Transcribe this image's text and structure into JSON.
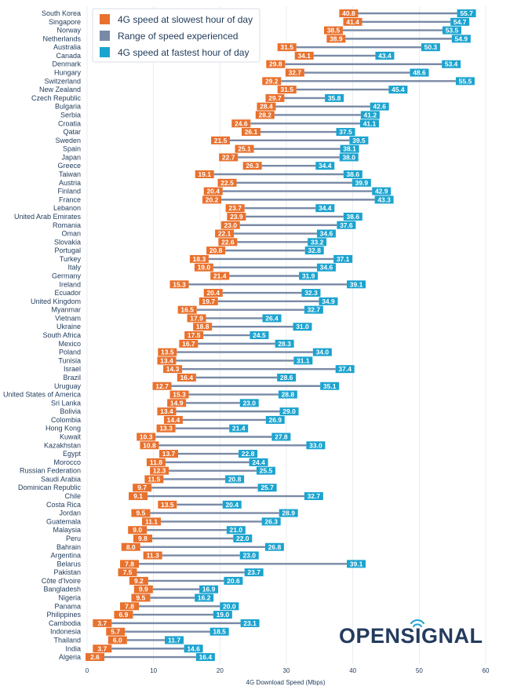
{
  "chart_data": {
    "type": "range",
    "title": "",
    "xlabel": "4G Download Speed (Mbps)",
    "ylabel": "",
    "xlim": [
      0,
      60
    ],
    "xticks": [
      0,
      10,
      20,
      30,
      40,
      50,
      60
    ],
    "legend_position": "top-left",
    "legend": {
      "min": "4G speed at slowest hour of day",
      "range": "Range of speed experienced",
      "max": "4G speed at fastest hour of day"
    },
    "colors": {
      "min": "#e8712d",
      "max": "#1ba3cf",
      "range": "#7a8aa6"
    },
    "logo": "OPENSIGNAL",
    "countries": [
      {
        "name": "South Korea",
        "min": 40.8,
        "max": 55.7
      },
      {
        "name": "Singapore",
        "min": 41.4,
        "max": 54.7
      },
      {
        "name": "Norway",
        "min": 38.5,
        "max": 53.5
      },
      {
        "name": "Netherlands",
        "min": 38.9,
        "max": 54.9
      },
      {
        "name": "Australia",
        "min": 31.5,
        "max": 50.3
      },
      {
        "name": "Canada",
        "min": 34.1,
        "max": 43.4
      },
      {
        "name": "Denmark",
        "min": 29.8,
        "max": 53.4
      },
      {
        "name": "Hungary",
        "min": 32.7,
        "max": 48.6
      },
      {
        "name": "Switzerland",
        "min": 29.2,
        "max": 55.5
      },
      {
        "name": "New Zealand",
        "min": 31.5,
        "max": 45.4
      },
      {
        "name": "Czech Republic",
        "min": 29.7,
        "max": 35.8
      },
      {
        "name": "Bulgaria",
        "min": 28.4,
        "max": 42.6
      },
      {
        "name": "Serbia",
        "min": 28.2,
        "max": 41.2
      },
      {
        "name": "Croatia",
        "min": 24.6,
        "max": 41.1
      },
      {
        "name": "Qatar",
        "min": 26.1,
        "max": 37.5
      },
      {
        "name": "Sweden",
        "min": 21.5,
        "max": 39.5
      },
      {
        "name": "Spain",
        "min": 25.1,
        "max": 38.1
      },
      {
        "name": "Japan",
        "min": 22.7,
        "max": 38.0
      },
      {
        "name": "Greece",
        "min": 26.3,
        "max": 34.4
      },
      {
        "name": "Taiwan",
        "min": 19.1,
        "max": 38.6
      },
      {
        "name": "Austria",
        "min": 22.5,
        "max": 39.9
      },
      {
        "name": "Finland",
        "min": 20.4,
        "max": 42.9
      },
      {
        "name": "France",
        "min": 20.2,
        "max": 43.3
      },
      {
        "name": "Lebanon",
        "min": 23.7,
        "max": 34.4
      },
      {
        "name": "United Arab Emirates",
        "min": 23.9,
        "max": 38.6
      },
      {
        "name": "Romania",
        "min": 23.0,
        "max": 37.6
      },
      {
        "name": "Oman",
        "min": 22.1,
        "max": 34.6
      },
      {
        "name": "Slovakia",
        "min": 22.6,
        "max": 33.2
      },
      {
        "name": "Portugal",
        "min": 20.8,
        "max": 32.8
      },
      {
        "name": "Turkey",
        "min": 18.3,
        "max": 37.1
      },
      {
        "name": "Italy",
        "min": 19.0,
        "max": 34.6
      },
      {
        "name": "Germany",
        "min": 21.4,
        "max": 31.9
      },
      {
        "name": "Ireland",
        "min": 15.3,
        "max": 39.1
      },
      {
        "name": "Ecuador",
        "min": 20.4,
        "max": 32.3
      },
      {
        "name": "United Kingdom",
        "min": 19.7,
        "max": 34.9
      },
      {
        "name": "Myanmar",
        "min": 16.5,
        "max": 32.7
      },
      {
        "name": "Vietnam",
        "min": 17.9,
        "max": 26.4
      },
      {
        "name": "Ukraine",
        "min": 18.8,
        "max": 31.0
      },
      {
        "name": "South Africa",
        "min": 17.5,
        "max": 24.5
      },
      {
        "name": "Mexico",
        "min": 16.7,
        "max": 28.3
      },
      {
        "name": "Poland",
        "min": 13.5,
        "max": 34.0
      },
      {
        "name": "Tunisia",
        "min": 13.4,
        "max": 31.1
      },
      {
        "name": "Israel",
        "min": 14.3,
        "max": 37.4
      },
      {
        "name": "Brazil",
        "min": 16.4,
        "max": 28.6
      },
      {
        "name": "Uruguay",
        "min": 12.7,
        "max": 35.1
      },
      {
        "name": "United States of America",
        "min": 15.3,
        "max": 28.8
      },
      {
        "name": "Sri Lanka",
        "min": 14.9,
        "max": 23.0
      },
      {
        "name": "Bolivia",
        "min": 13.4,
        "max": 29.0
      },
      {
        "name": "Colombia",
        "min": 14.4,
        "max": 26.9
      },
      {
        "name": "Hong Kong",
        "min": 13.3,
        "max": 21.4
      },
      {
        "name": "Kuwait",
        "min": 10.3,
        "max": 27.8
      },
      {
        "name": "Kazakhstan",
        "min": 10.8,
        "max": 33.0
      },
      {
        "name": "Egypt",
        "min": 13.7,
        "max": 22.8
      },
      {
        "name": "Morocco",
        "min": 11.8,
        "max": 24.4
      },
      {
        "name": "Russian Federation",
        "min": 12.3,
        "max": 25.5
      },
      {
        "name": "Saudi Arabia",
        "min": 11.5,
        "max": 20.8
      },
      {
        "name": "Dominican Republic",
        "min": 9.7,
        "max": 25.7
      },
      {
        "name": "Chile",
        "min": 9.1,
        "max": 32.7
      },
      {
        "name": "Costa Rica",
        "min": 13.5,
        "max": 20.4
      },
      {
        "name": "Jordan",
        "min": 9.5,
        "max": 28.9
      },
      {
        "name": "Guatemala",
        "min": 11.1,
        "max": 26.3
      },
      {
        "name": "Malaysia",
        "min": 9.0,
        "max": 21.0
      },
      {
        "name": "Peru",
        "min": 9.8,
        "max": 22.0
      },
      {
        "name": "Bahrain",
        "min": 8.0,
        "max": 26.8
      },
      {
        "name": "Argentina",
        "min": 11.3,
        "max": 23.0
      },
      {
        "name": "Belarus",
        "min": 7.8,
        "max": 39.1
      },
      {
        "name": "Pakistan",
        "min": 7.5,
        "max": 23.7
      },
      {
        "name": "Côte d'Ivoire",
        "min": 9.2,
        "max": 20.6
      },
      {
        "name": "Bangladesh",
        "min": 9.9,
        "max": 16.9
      },
      {
        "name": "Nigeria",
        "min": 9.5,
        "max": 16.2
      },
      {
        "name": "Panama",
        "min": 7.8,
        "max": 20.0
      },
      {
        "name": "Philippines",
        "min": 6.9,
        "max": 19.0
      },
      {
        "name": "Cambodia",
        "min": 3.7,
        "max": 23.1
      },
      {
        "name": "Indonesia",
        "min": 5.7,
        "max": 18.5
      },
      {
        "name": "Thailand",
        "min": 6.0,
        "max": 11.7
      },
      {
        "name": "India",
        "min": 3.7,
        "max": 14.6
      },
      {
        "name": "Algeria",
        "min": 2.6,
        "max": 16.4
      }
    ]
  }
}
